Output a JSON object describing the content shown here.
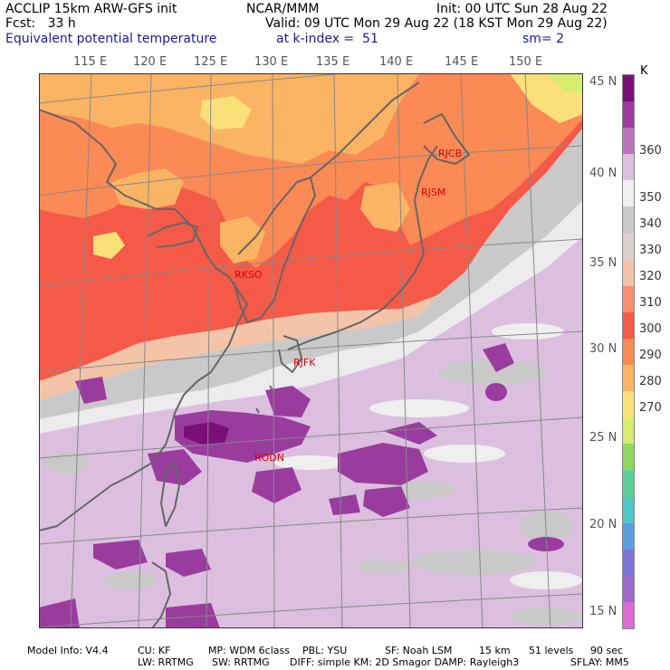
{
  "header": {
    "model": "ACCLIP 15km ARW-GFS init",
    "org": "NCAR/MMM",
    "init": "Init: 00 UTC Sun 28 Aug 22",
    "fcst": "Fcst:   33 h",
    "valid": "Valid: 09 UTC Mon 29 Aug 22 (18 KST Mon 29 Aug 22)",
    "field": "Equivalent potential temperature",
    "level": "at k-index =  51",
    "smooth": "sm= 2"
  },
  "map": {
    "lon_labels": [
      "115 E",
      "120 E",
      "125 E",
      "130 E",
      "135 E",
      "140 E",
      "145 E",
      "150 E"
    ],
    "lat_labels": [
      "45 N",
      "40 N",
      "35 N",
      "30 N",
      "25 N",
      "20 N",
      "15 N"
    ],
    "stations": [
      "RJCB",
      "RJSM",
      "RKSO",
      "RJFK",
      "RODN"
    ]
  },
  "colorbar": {
    "unit": "K",
    "labels": [
      "360",
      "350",
      "340",
      "330",
      "320",
      "310",
      "300",
      "290",
      "280",
      "270"
    ],
    "colors": [
      "#7a0f7a",
      "#9a3c9e",
      "#b974bd",
      "#dcbfdf",
      "#efefef",
      "#c9c9c9",
      "#dad2cc",
      "#f4c4a8",
      "#fb8d72",
      "#f55a48",
      "#fb8a54",
      "#fbb463",
      "#fbe07a",
      "#d8ec6e",
      "#8ed85e",
      "#5fcf95",
      "#4fc6c8",
      "#5a9ee0",
      "#7e73d8",
      "#9d6acb",
      "#dd6cd5"
    ]
  },
  "footer": {
    "line1": [
      "Model Info: V4.4",
      "CU: KF",
      "MP: WDM 6class",
      "PBL: YSU",
      "SF: Noah LSM",
      "15 km",
      "51 levels",
      "90 sec"
    ],
    "line2": [
      "LW: RRTMG",
      "SW: RRTMG",
      "DIFF: simple KM: 2D Smagor DAMP: Rayleigh3",
      "SFLAY: MM5"
    ]
  }
}
